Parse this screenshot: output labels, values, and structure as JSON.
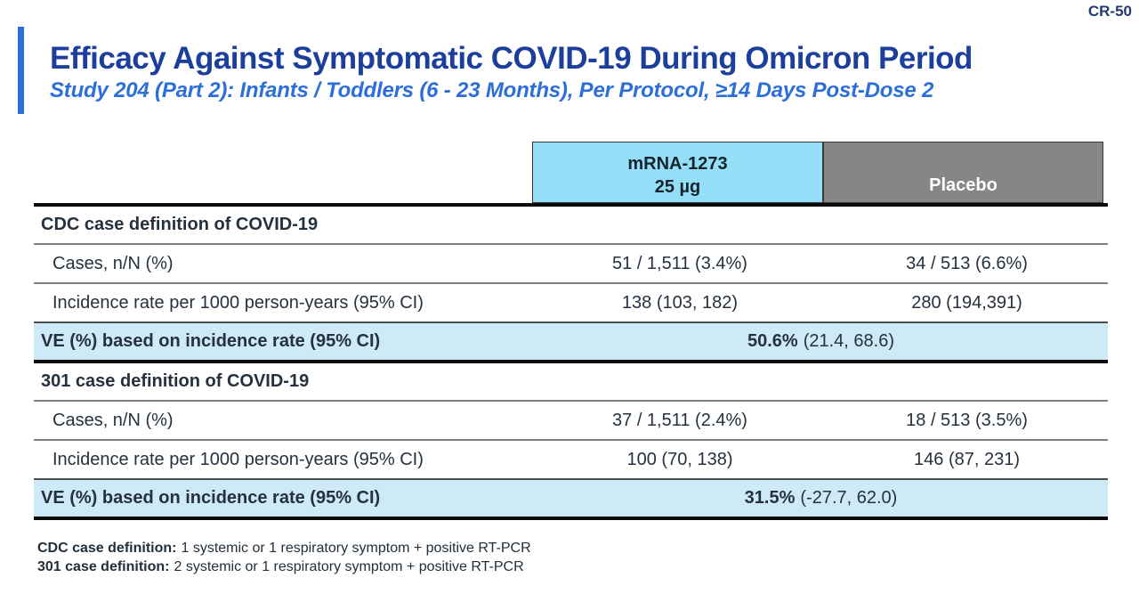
{
  "meta": {
    "slide_code": "CR-50"
  },
  "header": {
    "title": "Efficacy Against Symptomatic COVID-19 During Omicron Period",
    "subtitle": "Study 204 (Part 2): Infants / Toddlers (6 - 23 Months), Per Protocol, ≥14 Days Post-Dose 2"
  },
  "colors": {
    "accent_blue": "#2d6fd8",
    "title_navy": "#1c3f9c",
    "subtitle_blue": "#2d6fd8",
    "header_cell_blue": "#94dff7",
    "ve_row_blue": "#cfeaf7",
    "placebo_gray": "#868686"
  },
  "table": {
    "columns": [
      {
        "line1": "mRNA-1273",
        "line2": "25 µg"
      },
      {
        "label": "Placebo"
      }
    ],
    "sections": [
      {
        "header": "CDC case definition of COVID-19",
        "rows": [
          {
            "label": "Cases, n/N (%)",
            "mrna": "51 / 1,511 (3.4%)",
            "placebo": "34 / 513 (6.6%)"
          },
          {
            "label": "Incidence rate per 1000 person-years (95% CI)",
            "mrna": "138 (103, 182)",
            "placebo": "280 (194,391)"
          }
        ],
        "ve": {
          "label": "VE (%) based on incidence rate (95% CI)",
          "value": "50.6%",
          "ci": "(21.4, 68.6)"
        }
      },
      {
        "header": "301 case definition of COVID-19",
        "rows": [
          {
            "label": "Cases, n/N (%)",
            "mrna": "37 / 1,511 (2.4%)",
            "placebo": "18 / 513 (3.5%)"
          },
          {
            "label": "Incidence rate per 1000 person-years (95% CI)",
            "mrna": "100 (70, 138)",
            "placebo": "146 (87, 231)"
          }
        ],
        "ve": {
          "label": "VE (%) based on incidence rate (95% CI)",
          "value": "31.5%",
          "ci": "(-27.7, 62.0)"
        }
      }
    ]
  },
  "footnotes": {
    "cdc_bold": "CDC case definition:",
    "cdc_rest": "1 systemic or 1 respiratory symptom + positive RT-PCR",
    "f301_bold": "301 case definition:",
    "f301_rest": "2 systemic or 1 respiratory symptom + positive RT-PCR"
  }
}
